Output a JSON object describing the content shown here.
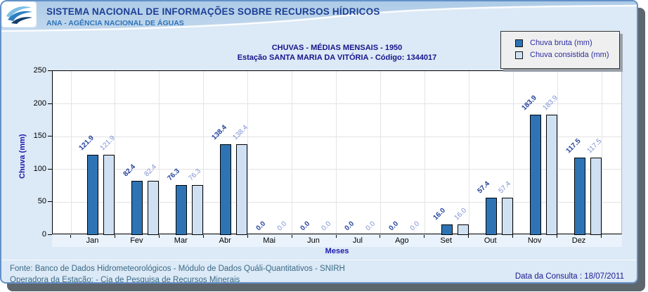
{
  "header": {
    "title": "SISTEMA NACIONAL DE INFORMAÇÕES SOBRE RECURSOS HÍDRICOS",
    "subtitle": "ANA - AGÊNCIA NACIONAL DE ÁGUAS"
  },
  "chart_data": {
    "type": "bar",
    "title": "CHUVAS - MÉDIAS MENSAIS - 1950",
    "subtitle": "Estação SANTA MARIA DA VITÓRIA - Código: 1344017",
    "categories": [
      "Jan",
      "Fev",
      "Mar",
      "Abr",
      "Mai",
      "Jun",
      "Jul",
      "Ago",
      "Set",
      "Out",
      "Nov",
      "Dez"
    ],
    "series": [
      {
        "name": "Chuva bruta (mm)",
        "color": "#2e74b5",
        "label_color": "#24419b",
        "values": [
          121.9,
          82.4,
          76.3,
          138.4,
          0.0,
          0.0,
          0.0,
          0.0,
          16.0,
          57.4,
          183.9,
          117.5
        ]
      },
      {
        "name": "Chuva consistida (mm)",
        "color": "#cfe0f2",
        "label_color": "#7e91d2",
        "values": [
          121.9,
          82.4,
          76.3,
          138.4,
          0.0,
          0.0,
          0.0,
          0.0,
          16.0,
          57.4,
          183.9,
          117.5
        ]
      }
    ],
    "xlabel": "Meses",
    "ylabel": "Chuva (mm)",
    "ylim": [
      0,
      250
    ],
    "ytick_step": 50,
    "grid": true,
    "legend_position": "top-right",
    "value_labels": true,
    "value_label_rotation": -45
  },
  "legend": {
    "items": [
      {
        "label": "Chuva bruta (mm)",
        "color": "#2e74b5"
      },
      {
        "label": "Chuva consistida (mm)",
        "color": "#cfe0f2"
      }
    ]
  },
  "footer": {
    "source_line": "Fonte: Banco de Dados Hidrometeorológicos - Módulo de Dados Quáli-Quantitativos - SNIRH",
    "operator_line": "Operadora da Estação:  - Cia de Pesquisa de Recursos Minerais",
    "consult_date": "Data da Consulta : 18/07/2011"
  },
  "colors": {
    "page_bg": "#dce9f6",
    "plot_bg": "#ffffff",
    "page_border": "#6391c8",
    "shadow": "#5d656d",
    "header_band": "#b7d2ea",
    "title_text": "#15158c",
    "footer_text": "#3a6a86",
    "grid_line": "#e2e2e2",
    "band_bg": "#eaf2fb"
  }
}
